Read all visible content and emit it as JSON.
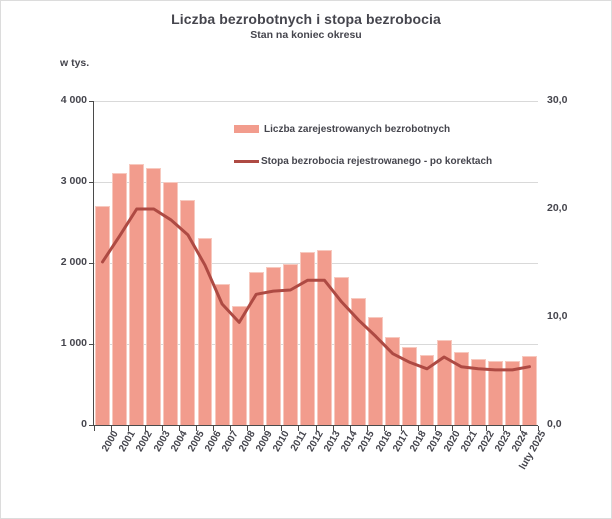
{
  "header": {
    "title": "Liczba bezrobotnych i stopa bezrobocia",
    "subtitle": "Stan na koniec okresu"
  },
  "legend": {
    "bars_label": "Liczba zarejestrowanych bezrobotnych",
    "line_label": "Stopa bezrobocia rejestrowanego - po korektach"
  },
  "axes": {
    "left_unit_label": "w tys."
  },
  "chart_data": {
    "type": "bar+line",
    "title": "Liczba bezrobotnych i stopa bezrobocia",
    "subtitle": "Stan na koniec okresu",
    "categories": [
      "2000",
      "2001",
      "2002",
      "2003",
      "2004",
      "2005",
      "2006",
      "2007",
      "2008",
      "2009",
      "2010",
      "2011",
      "2012",
      "2013",
      "2014",
      "2015",
      "2016",
      "2017",
      "2018",
      "2019",
      "2020",
      "2021",
      "2022",
      "2023",
      "2024",
      "luty 2025"
    ],
    "series": [
      {
        "name": "Liczba zarejestrowanych bezrobotnych",
        "type": "bar",
        "axis": "left",
        "unit": "tys.",
        "values": [
          2702.6,
          3115.1,
          3217.0,
          3175.7,
          2999.6,
          2773.0,
          2309.4,
          1746.6,
          1473.8,
          1892.7,
          1954.7,
          1982.7,
          2136.8,
          2157.9,
          1825.2,
          1563.3,
          1335.2,
          1081.7,
          968.9,
          866.4,
          1046.4,
          895.2,
          812.3,
          788.2,
          786.7,
          854.3
        ]
      },
      {
        "name": "Stopa bezrobocia rejestrowanego - po korektach",
        "type": "line",
        "axis": "right",
        "unit": "%",
        "values": [
          15.1,
          17.5,
          20.0,
          20.0,
          19.0,
          17.6,
          14.8,
          11.2,
          9.5,
          12.1,
          12.4,
          12.5,
          13.4,
          13.4,
          11.4,
          9.7,
          8.2,
          6.6,
          5.8,
          5.2,
          6.3,
          5.4,
          5.2,
          5.1,
          5.1,
          5.4
        ]
      }
    ],
    "left_axis": {
      "label": "w tys.",
      "range": [
        0,
        4000
      ],
      "tick_values": [
        0,
        1000,
        2000,
        3000,
        4000
      ],
      "tick_labels": [
        "0",
        "1 000",
        "2 000",
        "3 000",
        "4 000"
      ]
    },
    "right_axis": {
      "range": [
        0,
        30
      ],
      "tick_values": [
        0,
        10,
        20,
        30
      ],
      "tick_labels": [
        "0,0",
        "10,0",
        "20,0",
        "30,0"
      ]
    },
    "grid": "horizontal",
    "legend_position": "inside-top"
  },
  "colors": {
    "bar_fill": "#F29C8D",
    "bar_border": "#F7C9BF",
    "line": "#AE4A43",
    "grid": "#D9D9D9",
    "axis": "#4A4A4A",
    "text": "#45454D",
    "frame_border": "#DCDCDC",
    "background": "#FFFFFF"
  }
}
